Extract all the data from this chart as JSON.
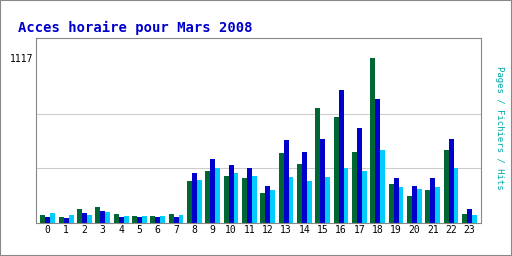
{
  "title": "Acces horaire pour Mars 2008",
  "title_color": "#0000cc",
  "ylabel_right": "Pages / Fichiers / Hits",
  "ylabel_right_color": "#00aaaa",
  "ytick_label": "1117",
  "hours": [
    0,
    1,
    2,
    3,
    4,
    5,
    6,
    7,
    8,
    9,
    10,
    11,
    12,
    13,
    14,
    15,
    16,
    17,
    18,
    19,
    20,
    21,
    22,
    23
  ],
  "pages": [
    55,
    42,
    90,
    105,
    58,
    48,
    48,
    58,
    280,
    350,
    320,
    300,
    200,
    470,
    400,
    780,
    720,
    480,
    1117,
    260,
    180,
    225,
    490,
    60
  ],
  "fichiers": [
    38,
    32,
    68,
    78,
    42,
    36,
    36,
    42,
    340,
    430,
    390,
    370,
    250,
    560,
    480,
    570,
    900,
    640,
    840,
    300,
    250,
    300,
    570,
    90
  ],
  "hits": [
    65,
    52,
    55,
    72,
    48,
    43,
    43,
    52,
    290,
    370,
    340,
    320,
    220,
    310,
    280,
    310,
    370,
    350,
    490,
    245,
    230,
    245,
    370,
    55
  ],
  "color_pages": "#006633",
  "color_fichiers": "#0000cc",
  "color_hits": "#00ccff",
  "bg_color": "#ffffff",
  "border_color": "#888888",
  "grid_color": "#cccccc",
  "ymax": 1250,
  "bar_width": 0.27,
  "grid_lines": [
    370,
    740
  ]
}
